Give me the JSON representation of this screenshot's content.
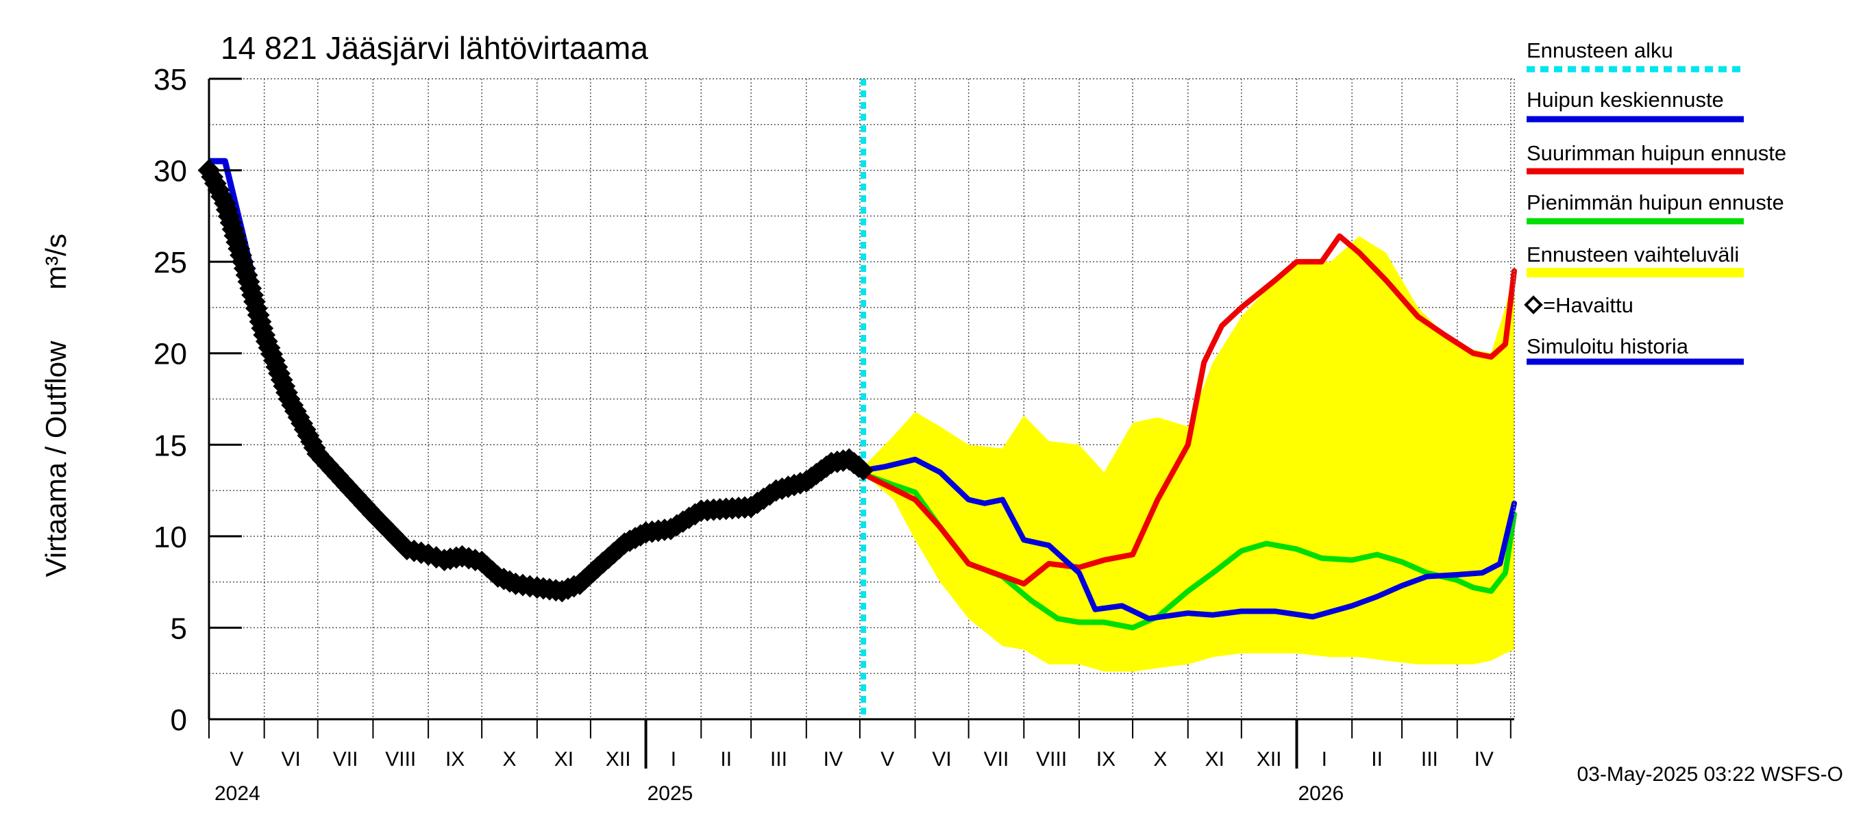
{
  "title": "14 821 Jääsjärvi lähtövirtaama",
  "footer": "03-May-2025 03:22 WSFS-O",
  "chart_data": {
    "type": "line",
    "ylabel_left": "Virtaama / Outflow",
    "ylabel_right": "m³/s",
    "ylim": [
      0,
      35
    ],
    "yticks": [
      "0",
      "5",
      "10",
      "15",
      "20",
      "25",
      "30",
      "35"
    ],
    "grid": true,
    "month_labels": [
      "V",
      "VI",
      "VII",
      "VIII",
      "IX",
      "X",
      "XI",
      "XII",
      "I",
      "II",
      "III",
      "IV",
      "V",
      "VI",
      "VII",
      "VIII",
      "IX",
      "X",
      "XI",
      "XII",
      "I",
      "II",
      "III",
      "IV"
    ],
    "year_labels": [
      "2024",
      "2025",
      "2026"
    ],
    "forecast_start": "2025-05-03",
    "colors": {
      "forecast_start": "#00e5ee",
      "mean_peak": "#0000dd",
      "max_peak": "#ee0000",
      "min_peak": "#00dd00",
      "range": "#ffff00",
      "observed": "#000000",
      "simulated": "#0000dd"
    },
    "legend": [
      {
        "label": "Ennusteen alku",
        "key": "forecast_start",
        "style": "dashed"
      },
      {
        "label": "Huipun keskiennuste",
        "key": "mean_peak",
        "style": "line"
      },
      {
        "label": "Suurimman huipun ennuste",
        "key": "max_peak",
        "style": "line"
      },
      {
        "label": "Pienimmän huipun ennuste",
        "key": "min_peak",
        "style": "line"
      },
      {
        "label": "Ennusteen vaihteluväli",
        "key": "range",
        "style": "band"
      },
      {
        "label": "=Havaittu",
        "key": "observed",
        "style": "marker"
      },
      {
        "label": "Simuloitu historia",
        "key": "simulated",
        "style": "line"
      }
    ],
    "series": [
      {
        "name": "Havaittu",
        "key": "observed",
        "x": [
          "2024-05-01",
          "2024-05-10",
          "2024-05-20",
          "2024-06-01",
          "2024-06-15",
          "2024-07-01",
          "2024-07-15",
          "2024-08-01",
          "2024-08-20",
          "2024-09-01",
          "2024-09-10",
          "2024-09-20",
          "2024-10-01",
          "2024-10-10",
          "2024-10-20",
          "2024-11-01",
          "2024-11-15",
          "2024-11-25",
          "2024-12-05",
          "2024-12-20",
          "2025-01-01",
          "2025-01-15",
          "2025-02-01",
          "2025-02-15",
          "2025-03-01",
          "2025-03-15",
          "2025-04-01",
          "2025-04-15",
          "2025-04-25",
          "2025-05-03"
        ],
        "y": [
          30.0,
          28.2,
          25.0,
          21.0,
          17.5,
          14.5,
          13.0,
          11.2,
          9.3,
          9.0,
          8.7,
          8.9,
          8.6,
          7.8,
          7.4,
          7.2,
          7.0,
          7.4,
          8.3,
          9.6,
          10.2,
          10.4,
          11.4,
          11.5,
          11.6,
          12.5,
          13.0,
          14.0,
          14.2,
          13.6
        ]
      },
      {
        "name": "Simuloitu historia",
        "key": "simulated",
        "x": [
          "2024-05-01",
          "2024-05-10",
          "2024-05-20",
          "2024-06-01",
          "2024-06-15",
          "2024-07-01",
          "2024-07-15",
          "2024-08-01"
        ],
        "y": [
          30.5,
          30.5,
          26.5,
          21.5,
          18.0,
          15.0,
          13.0,
          11.5
        ]
      },
      {
        "name": "Huipun keskiennuste",
        "key": "mean_peak",
        "x": [
          "2025-05-03",
          "2025-05-15",
          "2025-06-01",
          "2025-06-15",
          "2025-07-01",
          "2025-07-10",
          "2025-07-20",
          "2025-08-01",
          "2025-08-15",
          "2025-09-01",
          "2025-09-10",
          "2025-09-25",
          "2025-10-10",
          "2025-11-01",
          "2025-11-15",
          "2025-12-01",
          "2025-12-20",
          "2026-01-10",
          "2026-02-01",
          "2026-02-15",
          "2026-03-01",
          "2026-03-15",
          "2026-04-01",
          "2026-04-15",
          "2026-04-25",
          "2026-05-03"
        ],
        "y": [
          13.6,
          13.8,
          14.2,
          13.5,
          12.0,
          11.8,
          12.0,
          9.8,
          9.5,
          8.0,
          6.0,
          6.2,
          5.5,
          5.8,
          5.7,
          5.9,
          5.9,
          5.6,
          6.2,
          6.7,
          7.3,
          7.8,
          7.9,
          8.0,
          8.5,
          11.8
        ]
      },
      {
        "name": "Suurimman huipun ennuste",
        "key": "max_peak",
        "x": [
          "2025-05-03",
          "2025-06-01",
          "2025-06-15",
          "2025-07-01",
          "2025-07-15",
          "2025-08-01",
          "2025-08-15",
          "2025-09-01",
          "2025-09-15",
          "2025-10-01",
          "2025-10-15",
          "2025-11-01",
          "2025-11-10",
          "2025-11-20",
          "2025-12-01",
          "2025-12-20",
          "2026-01-01",
          "2026-01-15",
          "2026-01-25",
          "2026-02-05",
          "2026-02-20",
          "2026-03-10",
          "2026-03-25",
          "2026-04-10",
          "2026-04-20",
          "2026-04-28",
          "2026-05-03"
        ],
        "y": [
          13.4,
          12.0,
          10.5,
          8.5,
          8.0,
          7.4,
          8.5,
          8.3,
          8.7,
          9.0,
          12.0,
          15.0,
          19.5,
          21.5,
          22.5,
          24.0,
          25.0,
          25.0,
          26.4,
          25.5,
          24.0,
          22.0,
          21.0,
          20.0,
          19.8,
          20.5,
          24.5
        ]
      },
      {
        "name": "Pienimmän huipun ennuste",
        "key": "min_peak",
        "x": [
          "2025-05-03",
          "2025-05-20",
          "2025-06-01",
          "2025-06-15",
          "2025-07-01",
          "2025-07-20",
          "2025-08-05",
          "2025-08-20",
          "2025-09-01",
          "2025-09-15",
          "2025-10-01",
          "2025-10-15",
          "2025-11-01",
          "2025-11-15",
          "2025-12-01",
          "2025-12-15",
          "2026-01-01",
          "2026-01-15",
          "2026-02-01",
          "2026-02-15",
          "2026-03-01",
          "2026-03-15",
          "2026-04-01",
          "2026-04-10",
          "2026-04-20",
          "2026-04-28",
          "2026-05-03"
        ],
        "y": [
          13.4,
          12.8,
          12.4,
          10.5,
          8.5,
          7.8,
          6.5,
          5.5,
          5.3,
          5.3,
          5.0,
          5.6,
          7.0,
          8.0,
          9.2,
          9.6,
          9.3,
          8.8,
          8.7,
          9.0,
          8.6,
          8.0,
          7.6,
          7.2,
          7.0,
          8.0,
          11.2
        ]
      },
      {
        "name": "Ennusteen vaihteluväli",
        "key": "range",
        "x": [
          "2025-05-03",
          "2025-05-20",
          "2025-06-01",
          "2025-06-15",
          "2025-07-01",
          "2025-07-20",
          "2025-08-01",
          "2025-08-15",
          "2025-09-01",
          "2025-09-15",
          "2025-10-01",
          "2025-10-15",
          "2025-11-01",
          "2025-11-15",
          "2025-12-01",
          "2025-12-20",
          "2026-01-01",
          "2026-01-20",
          "2026-02-05",
          "2026-02-20",
          "2026-03-10",
          "2026-03-25",
          "2026-04-10",
          "2026-04-20",
          "2026-04-28",
          "2026-05-03"
        ],
        "upper": [
          13.8,
          15.5,
          16.8,
          16.0,
          15.0,
          14.8,
          16.6,
          15.2,
          15.0,
          13.5,
          16.2,
          16.5,
          16.0,
          19.5,
          22.0,
          24.0,
          25.0,
          25.0,
          26.4,
          25.5,
          22.5,
          21.0,
          20.2,
          20.0,
          22.5,
          24.5
        ],
        "lower": [
          13.4,
          12.0,
          9.8,
          7.5,
          5.5,
          4.0,
          3.8,
          3.0,
          3.0,
          2.6,
          2.6,
          2.8,
          3.0,
          3.4,
          3.6,
          3.6,
          3.6,
          3.4,
          3.4,
          3.2,
          3.0,
          3.0,
          3.0,
          3.2,
          3.6,
          3.8
        ]
      }
    ]
  }
}
